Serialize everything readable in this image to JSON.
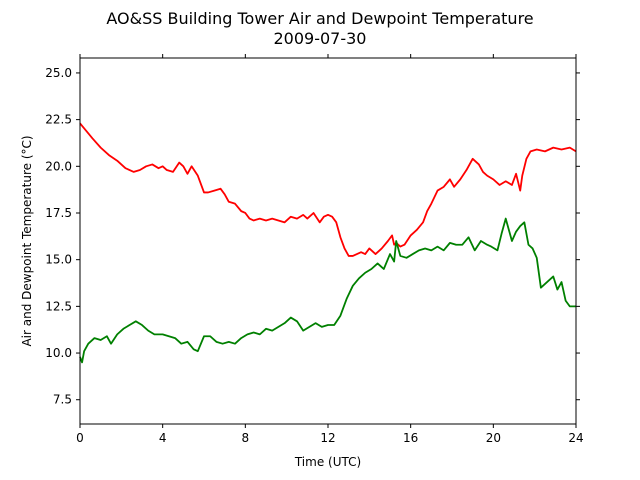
{
  "chart_data": {
    "type": "line",
    "title": "AO&SS Building Tower Air and Dewpoint Temperature",
    "subtitle": "2009-07-30",
    "xlabel": "Time (UTC)",
    "ylabel": "Air and Dewpoint Temperature (°C)",
    "xlim": [
      0,
      24
    ],
    "ylim": [
      6.2,
      25.8
    ],
    "x_ticks": [
      0,
      4,
      8,
      12,
      16,
      20,
      24
    ],
    "x_tick_labels": [
      "0",
      "4",
      "8",
      "12",
      "16",
      "20",
      "24"
    ],
    "y_ticks": [
      7.5,
      10.0,
      12.5,
      15.0,
      17.5,
      20.0,
      22.5,
      25.0
    ],
    "y_tick_labels": [
      "7.5",
      "10.0",
      "12.5",
      "15.0",
      "17.5",
      "20.0",
      "22.5",
      "25.0"
    ],
    "grid": false,
    "series": [
      {
        "color": "#ff0000",
        "x": [
          0,
          0.3,
          0.6,
          1.0,
          1.4,
          1.8,
          2.2,
          2.6,
          2.9,
          3.2,
          3.5,
          3.8,
          4.0,
          4.2,
          4.5,
          4.8,
          5.0,
          5.2,
          5.4,
          5.7,
          5.9,
          6.0,
          6.2,
          6.5,
          6.8,
          7.0,
          7.2,
          7.5,
          7.8,
          8.0,
          8.2,
          8.4,
          8.7,
          9.0,
          9.3,
          9.6,
          9.9,
          10.2,
          10.5,
          10.8,
          11.0,
          11.3,
          11.6,
          11.8,
          12.0,
          12.2,
          12.4,
          12.6,
          12.8,
          13.0,
          13.2,
          13.4,
          13.6,
          13.8,
          14.0,
          14.3,
          14.6,
          14.9,
          15.1,
          15.2,
          15.3,
          15.5,
          15.7,
          16.0,
          16.3,
          16.6,
          16.8,
          17.0,
          17.3,
          17.6,
          17.9,
          18.1,
          18.4,
          18.7,
          19.0,
          19.3,
          19.5,
          19.7,
          20.0,
          20.3,
          20.6,
          20.9,
          21.1,
          21.3,
          21.4,
          21.6,
          21.8,
          22.1,
          22.5,
          22.9,
          23.3,
          23.7,
          24.0
        ],
        "values": [
          22.3,
          21.9,
          21.5,
          21.0,
          20.6,
          20.3,
          19.9,
          19.7,
          19.8,
          20.0,
          20.1,
          19.9,
          20.0,
          19.8,
          19.7,
          20.2,
          20.0,
          19.6,
          20.0,
          19.5,
          18.9,
          18.6,
          18.6,
          18.7,
          18.8,
          18.5,
          18.1,
          18.0,
          17.6,
          17.5,
          17.2,
          17.1,
          17.2,
          17.1,
          17.2,
          17.1,
          17.0,
          17.3,
          17.2,
          17.4,
          17.2,
          17.5,
          17.0,
          17.3,
          17.4,
          17.3,
          17.0,
          16.2,
          15.6,
          15.2,
          15.2,
          15.3,
          15.4,
          15.3,
          15.6,
          15.3,
          15.6,
          16.0,
          16.3,
          15.8,
          15.9,
          15.7,
          15.8,
          16.3,
          16.6,
          17.0,
          17.6,
          18.0,
          18.7,
          18.9,
          19.3,
          18.9,
          19.3,
          19.8,
          20.4,
          20.1,
          19.7,
          19.5,
          19.3,
          19.0,
          19.2,
          19.0,
          19.6,
          18.7,
          19.5,
          20.4,
          20.8,
          20.9,
          20.8,
          21.0,
          20.9,
          21.0,
          20.8
        ]
      },
      {
        "color": "#008000",
        "x": [
          0,
          0.1,
          0.2,
          0.4,
          0.7,
          1.0,
          1.3,
          1.5,
          1.8,
          2.1,
          2.4,
          2.7,
          3.0,
          3.3,
          3.6,
          4.0,
          4.3,
          4.6,
          4.9,
          5.2,
          5.5,
          5.7,
          6.0,
          6.3,
          6.6,
          6.9,
          7.2,
          7.5,
          7.8,
          8.1,
          8.4,
          8.7,
          9.0,
          9.3,
          9.6,
          9.9,
          10.2,
          10.5,
          10.8,
          11.1,
          11.4,
          11.7,
          12.0,
          12.3,
          12.6,
          12.9,
          13.2,
          13.5,
          13.8,
          14.1,
          14.4,
          14.7,
          15.0,
          15.2,
          15.3,
          15.5,
          15.8,
          16.1,
          16.4,
          16.7,
          17.0,
          17.3,
          17.6,
          17.9,
          18.2,
          18.5,
          18.8,
          19.1,
          19.4,
          19.7,
          19.9,
          20.2,
          20.4,
          20.6,
          20.9,
          21.1,
          21.3,
          21.5,
          21.7,
          21.9,
          22.1,
          22.3,
          22.6,
          22.9,
          23.1,
          23.3,
          23.5,
          23.7,
          24.0
        ],
        "values": [
          9.8,
          9.5,
          10.1,
          10.5,
          10.8,
          10.7,
          10.9,
          10.5,
          11.0,
          11.3,
          11.5,
          11.7,
          11.5,
          11.2,
          11.0,
          11.0,
          10.9,
          10.8,
          10.5,
          10.6,
          10.2,
          10.1,
          10.9,
          10.9,
          10.6,
          10.5,
          10.6,
          10.5,
          10.8,
          11.0,
          11.1,
          11.0,
          11.3,
          11.2,
          11.4,
          11.6,
          11.9,
          11.7,
          11.2,
          11.4,
          11.6,
          11.4,
          11.5,
          11.5,
          12.0,
          12.9,
          13.6,
          14.0,
          14.3,
          14.5,
          14.8,
          14.5,
          15.3,
          14.9,
          16.0,
          15.2,
          15.1,
          15.3,
          15.5,
          15.6,
          15.5,
          15.7,
          15.5,
          15.9,
          15.8,
          15.8,
          16.2,
          15.5,
          16.0,
          15.8,
          15.7,
          15.5,
          16.4,
          17.2,
          16.0,
          16.5,
          16.8,
          17.0,
          15.8,
          15.6,
          15.1,
          13.5,
          13.8,
          14.1,
          13.4,
          13.8,
          12.8,
          12.5,
          12.5
        ]
      }
    ]
  }
}
